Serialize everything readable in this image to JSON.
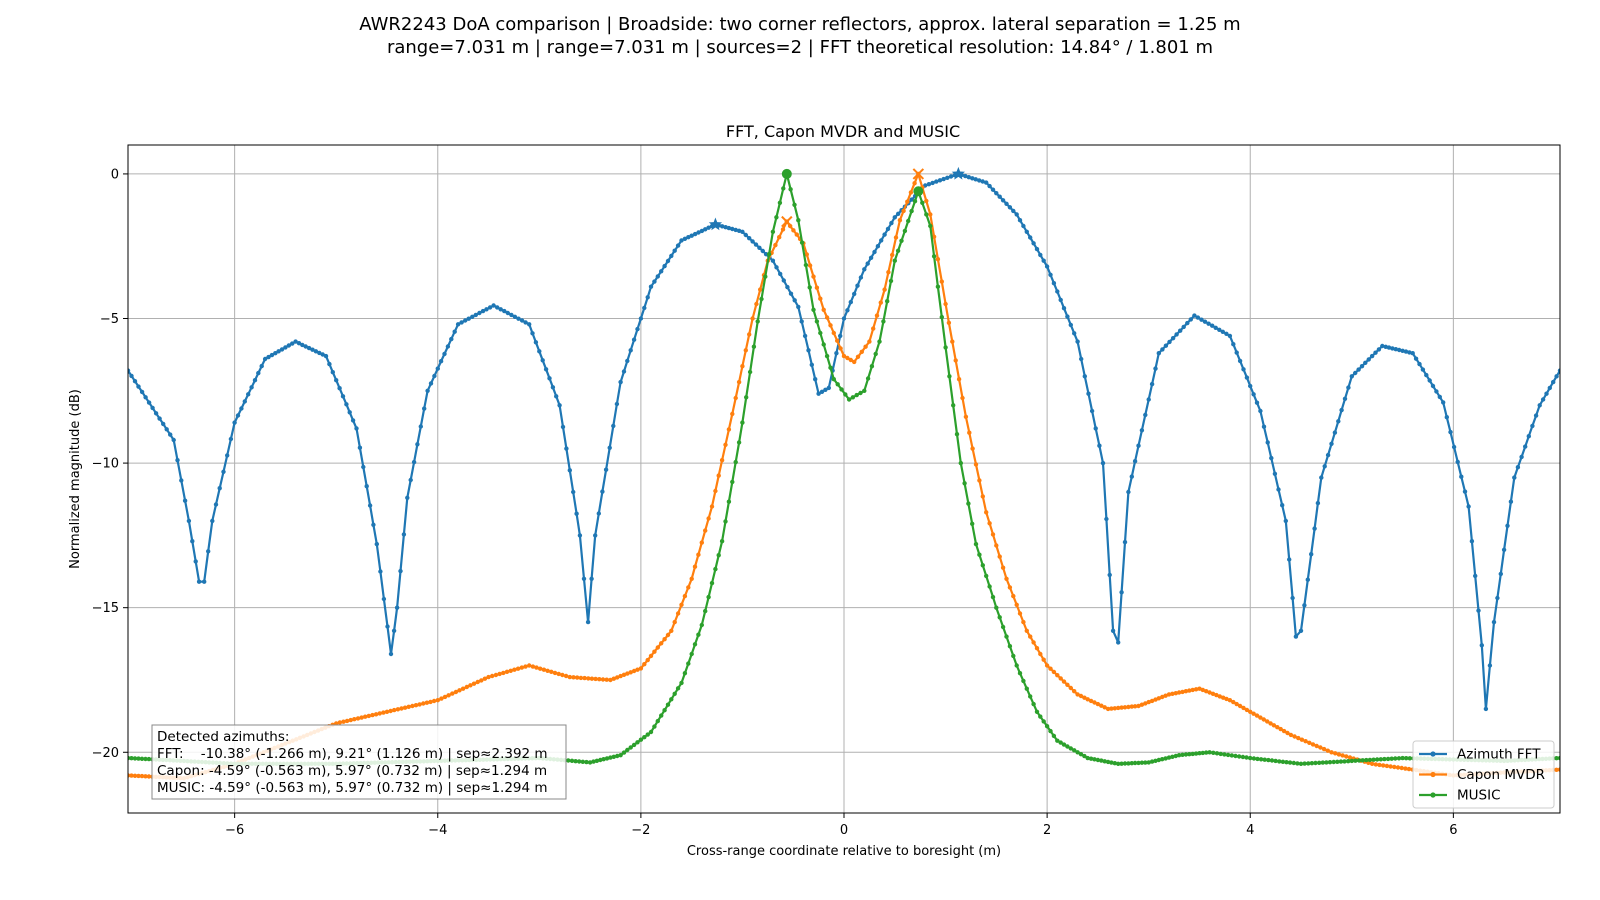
{
  "chart_data": {
    "type": "line",
    "suptitle_line1": "AWR2243 DoA comparison | Broadside: two corner reflectors, approx. lateral separation = 1.25 m",
    "suptitle_line2": "range=7.031 m | range=7.031 m | sources=2 | FFT theoretical resolution: 14.84° / 1.801 m",
    "title": "FFT, Capon MVDR and MUSIC",
    "xlabel": "Cross-range coordinate relative to boresight (m)",
    "ylabel": "Normalized magnitude (dB)",
    "xlim": [
      -7.05,
      7.05
    ],
    "ylim": [
      -22.1,
      1.0
    ],
    "xticks": [
      -6,
      -4,
      -2,
      0,
      2,
      4,
      6
    ],
    "xtick_labels": [
      "−6",
      "−4",
      "−2",
      "0",
      "2",
      "4",
      "6"
    ],
    "yticks": [
      0,
      -5,
      -10,
      -15,
      -20
    ],
    "ytick_labels": [
      "0",
      "−5",
      "−10",
      "−15",
      "−20"
    ],
    "grid": true,
    "legend_position": "lower-right",
    "series": [
      {
        "name": "Azimuth FFT",
        "color": "#1f77b4",
        "peak_marker": "star",
        "peaks": [
          [
            -1.266,
            -1.75
          ],
          [
            1.126,
            0.0
          ]
        ],
        "points": [
          [
            -7.05,
            -6.8
          ],
          [
            -6.6,
            -9.2
          ],
          [
            -6.45,
            -12.0
          ],
          [
            -6.35,
            -14.1
          ],
          [
            -6.3,
            -14.1
          ],
          [
            -6.22,
            -12.0
          ],
          [
            -6.0,
            -8.6
          ],
          [
            -5.7,
            -6.4
          ],
          [
            -5.4,
            -5.8
          ],
          [
            -5.1,
            -6.3
          ],
          [
            -4.8,
            -8.8
          ],
          [
            -4.6,
            -12.8
          ],
          [
            -4.46,
            -16.6
          ],
          [
            -4.4,
            -15.0
          ],
          [
            -4.3,
            -11.2
          ],
          [
            -4.1,
            -7.5
          ],
          [
            -3.8,
            -5.2
          ],
          [
            -3.45,
            -4.55
          ],
          [
            -3.1,
            -5.2
          ],
          [
            -2.8,
            -8.0
          ],
          [
            -2.6,
            -12.5
          ],
          [
            -2.52,
            -15.5
          ],
          [
            -2.45,
            -12.5
          ],
          [
            -2.2,
            -7.2
          ],
          [
            -1.9,
            -3.9
          ],
          [
            -1.6,
            -2.3
          ],
          [
            -1.266,
            -1.75
          ],
          [
            -1.0,
            -2.0
          ],
          [
            -0.7,
            -3.0
          ],
          [
            -0.45,
            -4.6
          ],
          [
            -0.25,
            -7.6
          ],
          [
            -0.15,
            -7.4
          ],
          [
            0.0,
            -5.0
          ],
          [
            0.2,
            -3.3
          ],
          [
            0.5,
            -1.5
          ],
          [
            0.8,
            -0.4
          ],
          [
            1.126,
            0.0
          ],
          [
            1.4,
            -0.3
          ],
          [
            1.7,
            -1.4
          ],
          [
            2.0,
            -3.2
          ],
          [
            2.3,
            -5.8
          ],
          [
            2.55,
            -10.0
          ],
          [
            2.65,
            -15.8
          ],
          [
            2.7,
            -16.2
          ],
          [
            2.8,
            -11.0
          ],
          [
            3.1,
            -6.2
          ],
          [
            3.45,
            -4.9
          ],
          [
            3.8,
            -5.6
          ],
          [
            4.1,
            -8.2
          ],
          [
            4.35,
            -12.0
          ],
          [
            4.45,
            -16.0
          ],
          [
            4.5,
            -15.8
          ],
          [
            4.7,
            -10.5
          ],
          [
            5.0,
            -7.0
          ],
          [
            5.3,
            -5.95
          ],
          [
            5.6,
            -6.2
          ],
          [
            5.9,
            -7.9
          ],
          [
            6.15,
            -11.5
          ],
          [
            6.28,
            -16.3
          ],
          [
            6.32,
            -18.5
          ],
          [
            6.4,
            -15.5
          ],
          [
            6.6,
            -10.5
          ],
          [
            6.85,
            -8.0
          ],
          [
            7.05,
            -6.8
          ]
        ]
      },
      {
        "name": "Capon MVDR",
        "color": "#ff7f0e",
        "peak_marker": "x",
        "peaks": [
          [
            -0.563,
            -1.65
          ],
          [
            0.732,
            0.0
          ]
        ],
        "points": [
          [
            -7.05,
            -20.8
          ],
          [
            -6.5,
            -20.9
          ],
          [
            -6.0,
            -20.4
          ],
          [
            -5.5,
            -19.7
          ],
          [
            -5.0,
            -19.0
          ],
          [
            -4.5,
            -18.6
          ],
          [
            -4.0,
            -18.2
          ],
          [
            -3.5,
            -17.4
          ],
          [
            -3.1,
            -17.0
          ],
          [
            -2.7,
            -17.4
          ],
          [
            -2.3,
            -17.5
          ],
          [
            -2.0,
            -17.1
          ],
          [
            -1.7,
            -15.8
          ],
          [
            -1.5,
            -14.0
          ],
          [
            -1.3,
            -11.5
          ],
          [
            -1.1,
            -8.3
          ],
          [
            -0.9,
            -5.0
          ],
          [
            -0.75,
            -3.0
          ],
          [
            -0.563,
            -1.65
          ],
          [
            -0.4,
            -2.4
          ],
          [
            -0.2,
            -4.7
          ],
          [
            0.0,
            -6.3
          ],
          [
            0.1,
            -6.5
          ],
          [
            0.25,
            -5.8
          ],
          [
            0.4,
            -4.0
          ],
          [
            0.55,
            -1.6
          ],
          [
            0.732,
            0.0
          ],
          [
            0.85,
            -1.4
          ],
          [
            1.0,
            -4.5
          ],
          [
            1.2,
            -8.4
          ],
          [
            1.4,
            -11.7
          ],
          [
            1.6,
            -14.0
          ],
          [
            1.8,
            -15.8
          ],
          [
            2.0,
            -17.0
          ],
          [
            2.3,
            -18.0
          ],
          [
            2.6,
            -18.5
          ],
          [
            2.9,
            -18.4
          ],
          [
            3.2,
            -18.0
          ],
          [
            3.5,
            -17.8
          ],
          [
            3.8,
            -18.2
          ],
          [
            4.1,
            -18.8
          ],
          [
            4.4,
            -19.4
          ],
          [
            4.8,
            -20.0
          ],
          [
            5.2,
            -20.4
          ],
          [
            5.6,
            -20.6
          ],
          [
            6.0,
            -20.8
          ],
          [
            6.5,
            -20.7
          ],
          [
            7.05,
            -20.6
          ]
        ]
      },
      {
        "name": "MUSIC",
        "color": "#2ca02c",
        "peak_marker": "circle",
        "peaks": [
          [
            -0.563,
            0.0
          ],
          [
            0.732,
            -0.6
          ]
        ],
        "points": [
          [
            -7.05,
            -20.2
          ],
          [
            -6.5,
            -20.3
          ],
          [
            -6.0,
            -20.4
          ],
          [
            -5.0,
            -20.4
          ],
          [
            -4.0,
            -20.3
          ],
          [
            -3.0,
            -20.2
          ],
          [
            -2.5,
            -20.35
          ],
          [
            -2.2,
            -20.1
          ],
          [
            -1.9,
            -19.3
          ],
          [
            -1.6,
            -17.6
          ],
          [
            -1.4,
            -15.6
          ],
          [
            -1.2,
            -12.7
          ],
          [
            -1.0,
            -8.6
          ],
          [
            -0.85,
            -5.1
          ],
          [
            -0.7,
            -2.0
          ],
          [
            -0.563,
            0.0
          ],
          [
            -0.45,
            -1.6
          ],
          [
            -0.3,
            -4.7
          ],
          [
            -0.1,
            -7.1
          ],
          [
            0.05,
            -7.8
          ],
          [
            0.2,
            -7.5
          ],
          [
            0.35,
            -5.8
          ],
          [
            0.5,
            -3.0
          ],
          [
            0.732,
            -0.6
          ],
          [
            0.85,
            -1.8
          ],
          [
            1.0,
            -6.0
          ],
          [
            1.15,
            -10.0
          ],
          [
            1.3,
            -12.8
          ],
          [
            1.5,
            -15.0
          ],
          [
            1.7,
            -17.0
          ],
          [
            1.9,
            -18.6
          ],
          [
            2.1,
            -19.6
          ],
          [
            2.4,
            -20.2
          ],
          [
            2.7,
            -20.4
          ],
          [
            3.0,
            -20.35
          ],
          [
            3.3,
            -20.1
          ],
          [
            3.6,
            -20.0
          ],
          [
            4.0,
            -20.2
          ],
          [
            4.5,
            -20.4
          ],
          [
            5.0,
            -20.3
          ],
          [
            5.5,
            -20.2
          ],
          [
            6.0,
            -20.25
          ],
          [
            6.5,
            -20.3
          ],
          [
            7.05,
            -20.2
          ]
        ]
      }
    ],
    "annotation": {
      "title": "Detected azimuths:",
      "lines": [
        "FFT:    -10.38° (-1.266 m), 9.21° (1.126 m) | sep≈2.392 m",
        "Capon: -4.59° (-0.563 m), 5.97° (0.732 m) | sep≈1.294 m",
        "MUSIC: -4.59° (-0.563 m), 5.97° (0.732 m) | sep≈1.294 m"
      ]
    }
  }
}
